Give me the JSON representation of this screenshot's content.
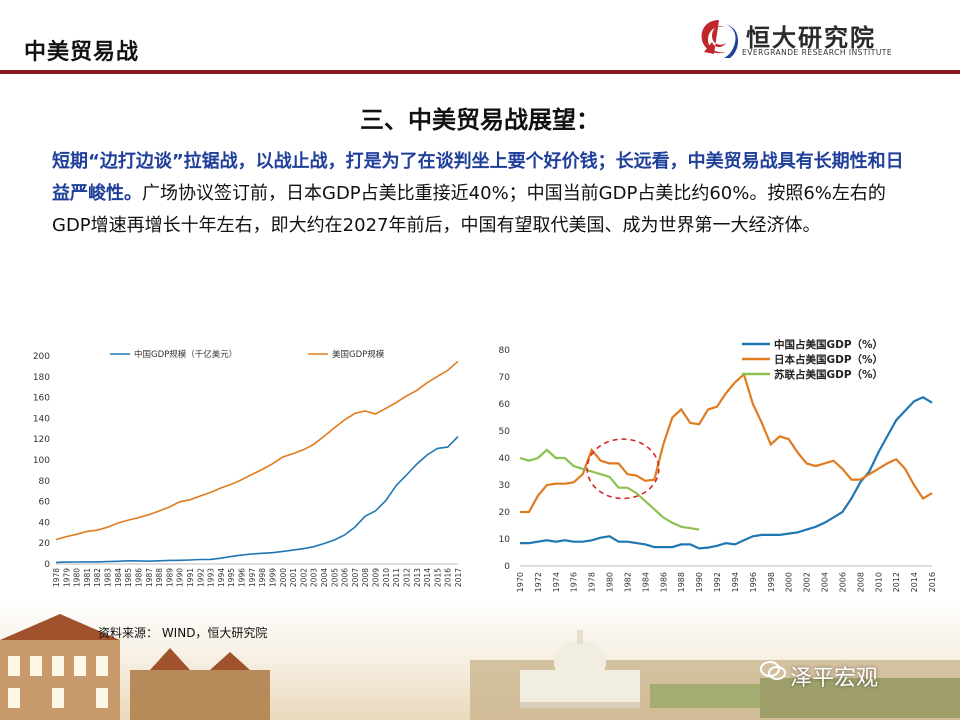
{
  "header": {
    "title": "中美贸易战",
    "logo_name": "恒大研究院",
    "logo_en": "EVERGRANDE RESEARCH INSTITUTE"
  },
  "subtitle": "三、中美贸易战展望：",
  "paragraph": {
    "highlight": "短期“边打边谈”拉锯战，以战止战，打是为了在谈判坐上要个好价钱；长远看，中美贸易战具有长期性和日益严峻性。",
    "body": "广场协议签订前，日本GDP占美比重接近40%；中国当前GDP占美比约60%。按照6%左右的GDP增速再增长十年左右，即大约在2027年前后，中国有望取代美国、成为世界第一大经济体。"
  },
  "source": "资料来源： WIND，恒大研究院",
  "watermark": "泽平宏观",
  "colors": {
    "accent": "#8b1a1a",
    "blue": "#1f77b4",
    "orange": "#e07b1f",
    "green": "#8cc152",
    "highlight": "#1f3f9a"
  },
  "chart_data": [
    {
      "type": "line",
      "title": "",
      "xlabel": "",
      "ylabel": "",
      "ylim": [
        0,
        200
      ],
      "yticks": [
        0,
        20,
        40,
        60,
        80,
        100,
        120,
        140,
        160,
        180,
        200
      ],
      "legend": "top",
      "x": [
        "1978",
        "1979",
        "1980",
        "1981",
        "1982",
        "1983",
        "1984",
        "1985",
        "1986",
        "1987",
        "1988",
        "1989",
        "1990",
        "1991",
        "1992",
        "1993",
        "1994",
        "1995",
        "1996",
        "1997",
        "1998",
        "1999",
        "2000",
        "2001",
        "2002",
        "2003",
        "2004",
        "2005",
        "2006",
        "2007",
        "2008",
        "2009",
        "2010",
        "2011",
        "2012",
        "2013",
        "2014",
        "2015",
        "2016",
        "2017"
      ],
      "series": [
        {
          "name": "中国GDP规模（千亿美元）",
          "color": "#1f77b4",
          "values": [
            1.5,
            1.8,
            1.9,
            2.0,
            2.0,
            2.3,
            2.6,
            3.1,
            3.0,
            2.7,
            3.1,
            3.5,
            3.6,
            3.8,
            4.3,
            4.4,
            5.6,
            7.3,
            8.6,
            9.6,
            10.3,
            10.9,
            12.1,
            13.4,
            14.7,
            16.6,
            19.6,
            23.1,
            27.9,
            35.5,
            46.0,
            51.1,
            61.0,
            75.5,
            85.6,
            96.1,
            104.8,
            111.2,
            112.4,
            122.5
          ]
        },
        {
          "name": "美国GDP规模",
          "color": "#e07b1f",
          "values": [
            23.5,
            26.3,
            28.6,
            31.3,
            32.5,
            35.4,
            39.3,
            42.2,
            44.6,
            47.4,
            51.0,
            54.8,
            59.8,
            61.7,
            65.4,
            68.8,
            73.1,
            76.6,
            81.0,
            86.1,
            90.9,
            96.3,
            102.9,
            106.2,
            109.8,
            115.1,
            122.7,
            130.9,
            138.6,
            144.8,
            147.1,
            144.2,
            149.6,
            155.2,
            161.6,
            166.9,
            174.3,
            180.4,
            186.2,
            194.9
          ]
        }
      ]
    },
    {
      "type": "line",
      "title": "",
      "xlabel": "",
      "ylabel": "",
      "ylim": [
        0,
        80
      ],
      "yticks": [
        0,
        10,
        20,
        30,
        40,
        50,
        60,
        70,
        80
      ],
      "xlim": [
        1970,
        2016
      ],
      "xticks": [
        "1970",
        "1972",
        "1974",
        "1976",
        "1978",
        "1980",
        "1982",
        "1984",
        "1986",
        "1988",
        "1990",
        "1992",
        "1994",
        "1996",
        "1998",
        "2000",
        "2002",
        "2004",
        "2006",
        "2008",
        "2010",
        "2012",
        "2014",
        "2016"
      ],
      "legend": "top-right",
      "annotation": "dashed red ellipse around 1978-1985",
      "series": [
        {
          "name": "中国占美国GDP（%）",
          "color": "#1f77b4",
          "x": [
            1970,
            1971,
            1972,
            1973,
            1974,
            1975,
            1976,
            1977,
            1978,
            1979,
            1980,
            1981,
            1982,
            1983,
            1984,
            1985,
            1986,
            1987,
            1988,
            1989,
            1990,
            1991,
            1992,
            1993,
            1994,
            1995,
            1996,
            1997,
            1998,
            1999,
            2000,
            2001,
            2002,
            2003,
            2004,
            2005,
            2006,
            2007,
            2008,
            2009,
            2010,
            2011,
            2012,
            2013,
            2014,
            2015,
            2016
          ],
          "values": [
            8.5,
            8.5,
            9,
            9.5,
            9,
            9.5,
            9,
            9,
            9.5,
            10.5,
            11,
            9,
            9,
            8.5,
            8,
            7,
            7,
            7,
            8,
            8,
            6.5,
            6.8,
            7.5,
            8.5,
            8,
            9.5,
            11,
            11.5,
            11.5,
            11.5,
            12,
            12.5,
            13.5,
            14.5,
            16,
            18,
            20,
            25,
            31,
            35,
            42,
            48,
            54,
            57.5,
            61,
            62.5,
            60.5
          ]
        },
        {
          "name": "日本占美国GDP（%）",
          "color": "#e07b1f",
          "x": [
            1970,
            1971,
            1972,
            1973,
            1974,
            1975,
            1976,
            1977,
            1978,
            1979,
            1980,
            1981,
            1982,
            1983,
            1984,
            1985,
            1986,
            1987,
            1988,
            1989,
            1990,
            1991,
            1992,
            1993,
            1994,
            1995,
            1996,
            1997,
            1998,
            1999,
            2000,
            2001,
            2002,
            2003,
            2004,
            2005,
            2006,
            2007,
            2008,
            2009,
            2010,
            2011,
            2012,
            2013,
            2014,
            2015,
            2016
          ],
          "values": [
            20,
            20,
            26,
            30,
            30.5,
            30.5,
            31,
            34,
            43,
            39,
            38,
            38,
            34,
            33.5,
            31.5,
            32,
            45,
            55,
            58,
            53,
            52.5,
            58,
            59,
            64,
            68,
            71,
            60,
            53,
            45,
            48,
            47,
            42,
            38,
            37,
            38,
            39,
            36,
            32,
            32,
            34,
            36,
            38,
            39.5,
            36,
            30,
            25,
            27
          ]
        },
        {
          "name": "苏联占美国GDP（%）",
          "color": "#8cc152",
          "x": [
            1970,
            1971,
            1972,
            1973,
            1974,
            1975,
            1976,
            1977,
            1978,
            1979,
            1980,
            1981,
            1982,
            1983,
            1984,
            1985,
            1986,
            1987,
            1988,
            1989,
            1990
          ],
          "values": [
            40,
            39,
            40,
            43,
            40,
            40,
            37,
            36,
            35,
            34,
            33,
            29,
            29,
            27,
            24,
            21,
            18,
            16,
            14.5,
            14,
            13.5
          ]
        }
      ]
    }
  ]
}
